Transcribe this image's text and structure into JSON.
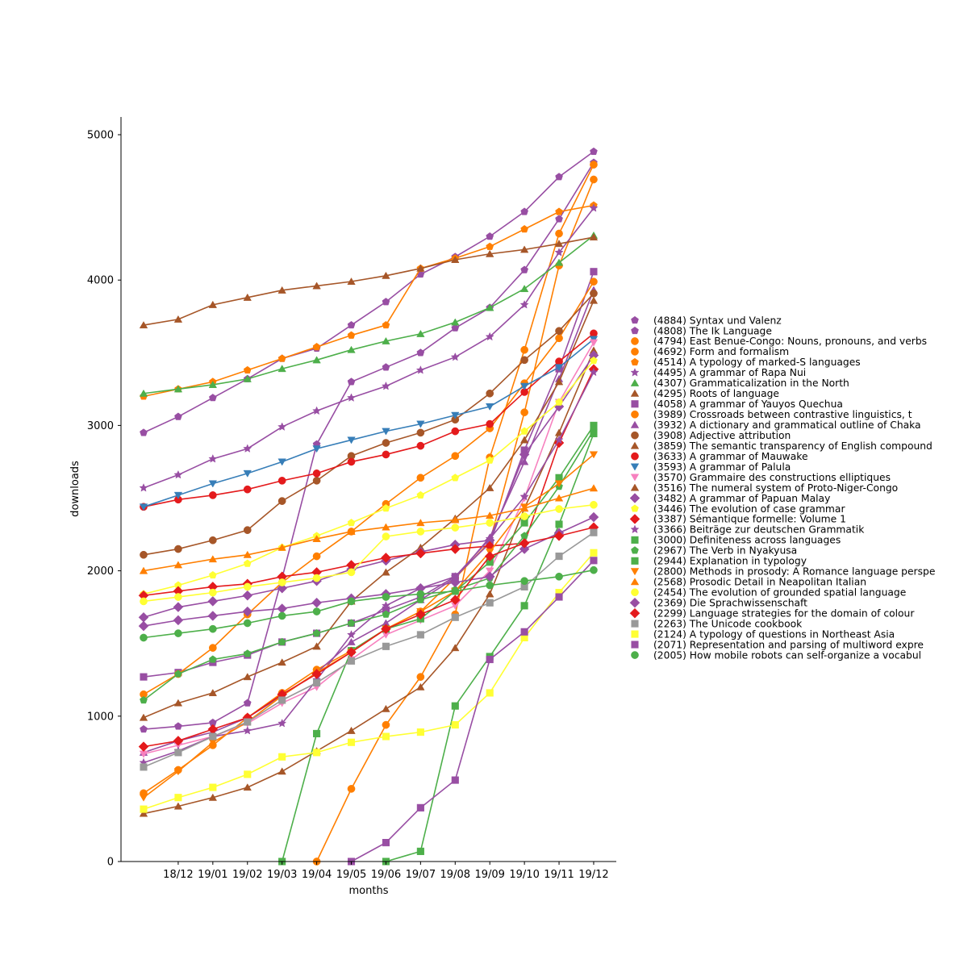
{
  "chart_data": {
    "type": "line",
    "title": "",
    "xlabel": "months",
    "ylabel": "downloads",
    "categories": [
      "",
      "18/12",
      "19/01",
      "19/02",
      "19/03",
      "19/04",
      "19/05",
      "19/06",
      "19/07",
      "19/08",
      "19/09",
      "19/10",
      "19/11",
      "19/12"
    ],
    "yticks": [
      0,
      1000,
      2000,
      3000,
      4000,
      5000
    ],
    "ylim": [
      0,
      5120
    ],
    "grid": false,
    "legend_position": "right",
    "series": [
      {
        "name": "(4884) Syntax und Valenz",
        "color": "#984ea3",
        "marker": "pentagon",
        "values": [
          2950,
          3060,
          3190,
          3320,
          3460,
          3530,
          3690,
          3850,
          4040,
          4160,
          4300,
          4470,
          4710,
          4884
        ]
      },
      {
        "name": "(4808) The Ik Language",
        "color": "#984ea3",
        "marker": "pentagon",
        "values": [
          910,
          930,
          955,
          1090,
          1950,
          2870,
          3300,
          3400,
          3500,
          3670,
          3810,
          4070,
          4420,
          4808
        ]
      },
      {
        "name": "(4794) East Benue-Congo: Nouns, pronouns, and verbs",
        "color": "#ff7f00",
        "marker": "circle",
        "values": [
          null,
          null,
          null,
          null,
          null,
          0,
          500,
          940,
          1270,
          1700,
          2780,
          3520,
          4320,
          4794
        ]
      },
      {
        "name": "(4692) Form and formalism",
        "color": "#ff7f00",
        "marker": "circle",
        "values": [
          470,
          630,
          800,
          990,
          1160,
          1320,
          1450,
          1600,
          1720,
          1950,
          2200,
          3090,
          4100,
          4692
        ]
      },
      {
        "name": "(4514) A typology of marked-S languages",
        "color": "#ff7f00",
        "marker": "pentagon",
        "values": [
          3200,
          3250,
          3300,
          3380,
          3460,
          3540,
          3620,
          3690,
          4080,
          4150,
          4230,
          4350,
          4470,
          4514
        ]
      },
      {
        "name": "(4495) A grammar of Rapa Nui",
        "color": "#984ea3",
        "marker": "star",
        "values": [
          2570,
          2660,
          2770,
          2840,
          2990,
          3100,
          3190,
          3270,
          3380,
          3470,
          3610,
          3830,
          4190,
          4495
        ]
      },
      {
        "name": "(4307) Grammaticalization in the North",
        "color": "#4daf4a",
        "marker": "triangle-up",
        "values": [
          3220,
          3250,
          3280,
          3320,
          3390,
          3450,
          3520,
          3580,
          3630,
          3710,
          3810,
          3940,
          4120,
          4307
        ]
      },
      {
        "name": "(4295) Roots of language",
        "color": "#a65628",
        "marker": "triangle-up",
        "values": [
          3690,
          3730,
          3830,
          3880,
          3930,
          3960,
          3990,
          4030,
          4080,
          4140,
          4180,
          4210,
          4250,
          4295
        ]
      },
      {
        "name": "(4058) A grammar of Yauyos Quechua",
        "color": "#984ea3",
        "marker": "square",
        "values": [
          1270,
          1300,
          1370,
          1420,
          1510,
          1570,
          1640,
          1730,
          1820,
          1960,
          2190,
          2830,
          3390,
          4058
        ]
      },
      {
        "name": "(3989) Crossroads between contrastive linguistics, t",
        "color": "#ff7f00",
        "marker": "circle",
        "values": [
          1150,
          1290,
          1470,
          1700,
          1920,
          2100,
          2270,
          2460,
          2640,
          2790,
          2980,
          3290,
          3600,
          3989
        ]
      },
      {
        "name": "(3932) A dictionary and grammatical outline of Chaka",
        "color": "#984ea3",
        "marker": "triangle-up",
        "values": [
          750,
          830,
          890,
          990,
          1140,
          1300,
          1510,
          1640,
          1800,
          1950,
          2230,
          2750,
          3320,
          3932
        ]
      },
      {
        "name": "(3908) Adjective attribution",
        "color": "#a65628",
        "marker": "circle",
        "values": [
          2110,
          2150,
          2210,
          2280,
          2480,
          2620,
          2790,
          2880,
          2950,
          3040,
          3220,
          3450,
          3650,
          3908
        ]
      },
      {
        "name": "(3859) The semantic transparency of English compound",
        "color": "#a65628",
        "marker": "triangle-up",
        "values": [
          990,
          1090,
          1160,
          1270,
          1370,
          1480,
          1790,
          1990,
          2160,
          2360,
          2570,
          2900,
          3300,
          3859
        ]
      },
      {
        "name": "(3633) A grammar of Mauwake",
        "color": "#e41a1c",
        "marker": "circle",
        "values": [
          2440,
          2490,
          2520,
          2560,
          2620,
          2670,
          2750,
          2800,
          2860,
          2960,
          3010,
          3230,
          3440,
          3633
        ]
      },
      {
        "name": "(3593) A grammar of Palula",
        "color": "#377eb8",
        "marker": "triangle-down",
        "values": [
          2440,
          2520,
          2600,
          2670,
          2750,
          2840,
          2900,
          2960,
          3010,
          3070,
          3130,
          3270,
          3400,
          3593
        ]
      },
      {
        "name": "(3570) Grammaire des constructions elliptiques",
        "color": "#f781bf",
        "marker": "triangle-down",
        "values": [
          740,
          800,
          860,
          950,
          1090,
          1200,
          1390,
          1560,
          1660,
          1760,
          2000,
          2500,
          3160,
          3570
        ]
      },
      {
        "name": "(3516) The numeral system of Proto-Niger-Congo",
        "color": "#a65628",
        "marker": "triangle-up",
        "values": [
          330,
          380,
          440,
          510,
          620,
          760,
          900,
          1050,
          1200,
          1470,
          1840,
          2430,
          2950,
          3516
        ]
      },
      {
        "name": "(3482) A grammar of Papuan Malay",
        "color": "#984ea3",
        "marker": "diamond",
        "values": [
          1680,
          1750,
          1790,
          1830,
          1880,
          1930,
          2010,
          2070,
          2130,
          2180,
          2210,
          2800,
          3130,
          3482
        ]
      },
      {
        "name": "(3446) The evolution of case grammar",
        "color": "#ffff33",
        "marker": "pentagon",
        "values": [
          1840,
          1900,
          1970,
          2050,
          2160,
          2240,
          2330,
          2430,
          2520,
          2640,
          2760,
          2960,
          3160,
          3446
        ]
      },
      {
        "name": "(3387) Sémantique formelle: Volume 1",
        "color": "#e41a1c",
        "marker": "diamond",
        "values": [
          1830,
          1860,
          1890,
          1910,
          1960,
          1990,
          2040,
          2090,
          2120,
          2150,
          2170,
          2190,
          2880,
          3387
        ]
      },
      {
        "name": "(3366) Beiträge zur deutschen Grammatik",
        "color": "#984ea3",
        "marker": "star",
        "values": [
          680,
          760,
          860,
          900,
          950,
          1250,
          1560,
          1760,
          1880,
          1960,
          2220,
          2510,
          2900,
          3366
        ]
      },
      {
        "name": "(3000) Definiteness across languages",
        "color": "#4daf4a",
        "marker": "square",
        "values": [
          null,
          null,
          null,
          null,
          0,
          880,
          1450,
          1600,
          1670,
          1860,
          2060,
          2330,
          2640,
          3000
        ]
      },
      {
        "name": "(2967) The Verb in Nyakyusa",
        "color": "#4daf4a",
        "marker": "pentagon",
        "values": [
          1110,
          1290,
          1390,
          1430,
          1510,
          1570,
          1640,
          1700,
          1800,
          1870,
          1950,
          2240,
          2580,
          2967
        ]
      },
      {
        "name": "(2944) Explanation in typology",
        "color": "#4daf4a",
        "marker": "square",
        "values": [
          null,
          null,
          null,
          null,
          null,
          null,
          null,
          0,
          70,
          1070,
          1410,
          1760,
          2320,
          2944
        ]
      },
      {
        "name": "(2800) Methods in prosody: A Romance language perspe",
        "color": "#ff7f00",
        "marker": "triangle-down",
        "values": [
          440,
          620,
          820,
          960,
          1140,
          1300,
          1440,
          1600,
          1720,
          1860,
          2130,
          2440,
          2600,
          2800
        ]
      },
      {
        "name": "(2568) Prosodic Detail in Neapolitan Italian",
        "color": "#ff7f00",
        "marker": "triangle-up",
        "values": [
          2000,
          2040,
          2080,
          2110,
          2160,
          2220,
          2270,
          2300,
          2330,
          2350,
          2380,
          2430,
          2500,
          2568
        ]
      },
      {
        "name": "(2454) The evolution of grounded spatial language",
        "color": "#ffff33",
        "marker": "circle",
        "values": [
          1790,
          1820,
          1850,
          1890,
          1920,
          1950,
          1990,
          2236,
          2270,
          2297,
          2330,
          2375,
          2425,
          2454
        ]
      },
      {
        "name": "(2369) Die Sprachwissenschaft",
        "color": "#984ea3",
        "marker": "diamond",
        "values": [
          1620,
          1660,
          1690,
          1720,
          1740,
          1780,
          1810,
          1840,
          1880,
          1920,
          1960,
          2150,
          2260,
          2369
        ]
      },
      {
        "name": "(2299) Language strategies for the domain of colour",
        "color": "#e41a1c",
        "marker": "diamond",
        "values": [
          790,
          830,
          910,
          990,
          1150,
          1290,
          1440,
          1600,
          1700,
          1800,
          2100,
          2190,
          2240,
          2299
        ]
      },
      {
        "name": "(2263) The Unicode cookbook",
        "color": "#999999",
        "marker": "square",
        "values": [
          650,
          750,
          860,
          960,
          1110,
          1230,
          1380,
          1480,
          1560,
          1680,
          1780,
          1890,
          2100,
          2263
        ]
      },
      {
        "name": "(2124) A typology of questions in Northeast Asia",
        "color": "#ffff33",
        "marker": "square",
        "values": [
          360,
          440,
          510,
          600,
          720,
          750,
          820,
          860,
          890,
          940,
          1160,
          1540,
          1850,
          2124
        ]
      },
      {
        "name": "(2071) Representation and parsing of multiword expre",
        "color": "#984ea3",
        "marker": "square",
        "values": [
          null,
          null,
          null,
          null,
          null,
          null,
          0,
          130,
          370,
          560,
          1390,
          1580,
          1820,
          2071
        ]
      },
      {
        "name": "(2005) How mobile robots can self-organize a vocabul",
        "color": "#4daf4a",
        "marker": "circle",
        "values": [
          1540,
          1570,
          1600,
          1640,
          1690,
          1720,
          1790,
          1820,
          1840,
          1860,
          1900,
          1930,
          1960,
          2005
        ]
      }
    ]
  }
}
